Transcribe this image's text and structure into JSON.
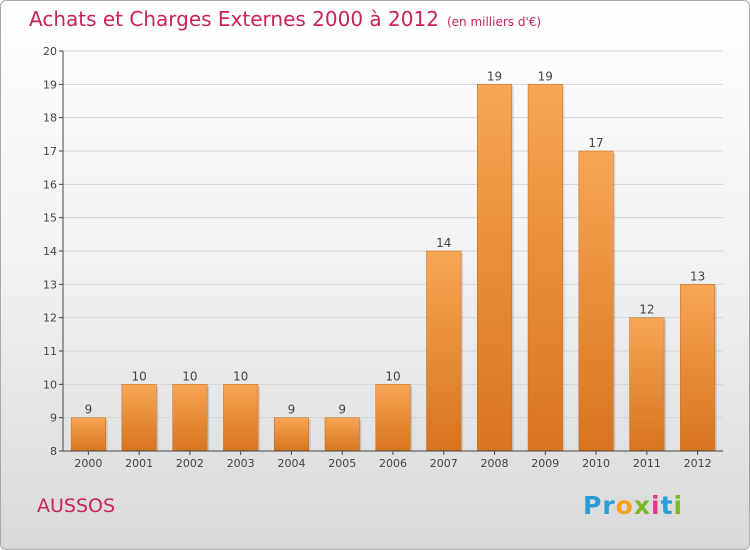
{
  "title": "Achats et Charges Externes 2000 à 2012",
  "subtitle": "(en milliers d'€)",
  "commune": "AUSSOS",
  "logo": {
    "letters": [
      "P",
      "r",
      "o",
      "x",
      "i",
      "t",
      "i"
    ],
    "colors": [
      "#2a9fd6",
      "#2a9fd6",
      "#f7a21b",
      "#7ab929",
      "#e03a8a",
      "#2a9fd6",
      "#7ab929"
    ]
  },
  "chart_data": {
    "type": "bar",
    "categories": [
      "2000",
      "2001",
      "2002",
      "2003",
      "2004",
      "2005",
      "2006",
      "2007",
      "2008",
      "2009",
      "2010",
      "2011",
      "2012"
    ],
    "values": [
      9,
      10,
      10,
      10,
      9,
      9,
      10,
      14,
      19,
      19,
      17,
      12,
      13
    ],
    "ylim": [
      8,
      20
    ],
    "yticks": [
      8,
      9,
      10,
      11,
      12,
      13,
      14,
      15,
      16,
      17,
      18,
      19,
      20
    ],
    "grid": true,
    "bar_color_top": "#f7a655",
    "bar_color_bottom": "#d8741d"
  }
}
